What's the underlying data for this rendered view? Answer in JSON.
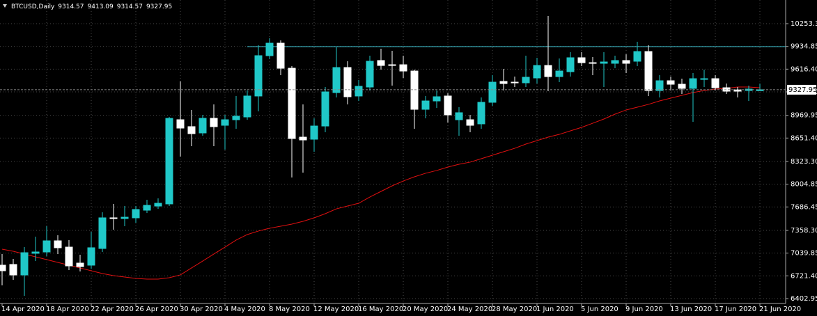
{
  "chart_data": {
    "type": "candlestick",
    "title": "BTCUSD,Daily",
    "categories": [
      "14 Apr 2020",
      null,
      null,
      null,
      "18 Apr 2020",
      null,
      null,
      null,
      "22 Apr 2020",
      null,
      null,
      null,
      "26 Apr 2020",
      null,
      null,
      null,
      "30 Apr 2020",
      null,
      null,
      null,
      "4 May 2020",
      null,
      null,
      null,
      "8 May 2020",
      null,
      null,
      null,
      "12 May 2020",
      null,
      null,
      null,
      "16 May 2020",
      null,
      null,
      null,
      "20 May 2020",
      null,
      null,
      null,
      "24 May 2020",
      null,
      null,
      null,
      "28 May 2020",
      null,
      null,
      null,
      "1 Jun 2020",
      null,
      null,
      null,
      "5 Jun 2020",
      null,
      null,
      null,
      "9 Jun 2020",
      null,
      null,
      null,
      "13 Jun 2020",
      null,
      null,
      null,
      "17 Jun 2020",
      null,
      null,
      null,
      "21 Jun 2020"
    ],
    "open": [
      6871,
      6881,
      6734,
      7037,
      7056,
      7212,
      7124,
      6900,
      6871,
      7105,
      7534,
      7524,
      7534,
      7641,
      7699,
      7729,
      8908,
      8811,
      8723,
      8928,
      8830,
      8908,
      8947,
      9240,
      9805,
      9980,
      9629,
      8664,
      8635,
      8820,
      9288,
      9639,
      9240,
      9366,
      9737,
      9678,
      9678,
      9590,
      9054,
      9171,
      9240,
      8908,
      8908,
      8850,
      9152,
      9444,
      9434,
      9425,
      9493,
      9668,
      9512,
      9581,
      9776,
      9707,
      9698,
      9698,
      9737,
      9727,
      9863,
      9317,
      9454,
      9405,
      9347,
      9473,
      9483,
      9356,
      9327,
      9317,
      9314.57
    ],
    "high": [
      7027,
      6959,
      7124,
      7270,
      7417,
      7290,
      7222,
      7017,
      7339,
      7612,
      7729,
      7699,
      7699,
      7787,
      7807,
      8947,
      9444,
      9044,
      8976,
      9123,
      8976,
      9240,
      9317,
      9951,
      10049,
      10019,
      9659,
      9123,
      8928,
      9366,
      9922,
      9727,
      9464,
      9805,
      9902,
      9873,
      9805,
      9610,
      9240,
      9317,
      9278,
      9084,
      8976,
      9220,
      9532,
      9620,
      9512,
      9805,
      9776,
      10361,
      9766,
      9854,
      9854,
      9785,
      9854,
      9805,
      9824,
      10000,
      9951,
      9532,
      9512,
      9483,
      9561,
      9610,
      9532,
      9415,
      9366,
      9386,
      9413.09
    ],
    "low": [
      6588,
      6666,
      6442,
      6929,
      6998,
      7027,
      6803,
      6783,
      6822,
      7056,
      7368,
      7417,
      7465,
      7602,
      7660,
      7699,
      8392,
      8538,
      8684,
      8538,
      8489,
      8781,
      8908,
      9025,
      9756,
      9532,
      8099,
      8167,
      8460,
      8733,
      9220,
      9123,
      9171,
      9317,
      9610,
      9386,
      9493,
      8781,
      8928,
      9074,
      8869,
      8684,
      8733,
      8781,
      9103,
      9317,
      9366,
      9366,
      9415,
      9308,
      9434,
      9512,
      9659,
      9532,
      9366,
      9629,
      9561,
      9659,
      9240,
      9220,
      9317,
      9269,
      8879,
      9366,
      9317,
      9269,
      9220,
      9171,
      9314.57
    ],
    "close": [
      6793,
      6734,
      7046,
      7056,
      7212,
      7115,
      6861,
      6851,
      7115,
      7534,
      7524,
      7543,
      7651,
      7709,
      7738,
      8927,
      8791,
      8713,
      8928,
      8811,
      8908,
      8957,
      9240,
      9805,
      9980,
      9629,
      8645,
      8625,
      8820,
      9298,
      9639,
      9230,
      9376,
      9727,
      9668,
      9673,
      9590,
      9054,
      9171,
      9230,
      8976,
      9006,
      8830,
      9152,
      9434,
      9415,
      9425,
      9503,
      9668,
      9512,
      9590,
      9776,
      9707,
      9698,
      9717,
      9737,
      9698,
      9863,
      9317,
      9454,
      9405,
      9347,
      9483,
      9483,
      9356,
      9308,
      9308,
      9337,
      9327.95
    ],
    "up_color": "#20c8c8",
    "down_color": "#ffffff",
    "ma": {
      "color": "#e01010",
      "values": [
        7095,
        7066,
        7027,
        6988,
        6949,
        6910,
        6871,
        6832,
        6793,
        6754,
        6725,
        6705,
        6686,
        6676,
        6676,
        6695,
        6735,
        6832,
        6929,
        7027,
        7124,
        7222,
        7300,
        7349,
        7388,
        7417,
        7446,
        7485,
        7534,
        7592,
        7660,
        7699,
        7738,
        7826,
        7904,
        7982,
        8050,
        8109,
        8158,
        8197,
        8245,
        8284,
        8314,
        8362,
        8411,
        8460,
        8508,
        8567,
        8616,
        8664,
        8703,
        8752,
        8801,
        8859,
        8918,
        8986,
        9045,
        9084,
        9123,
        9171,
        9210,
        9249,
        9288,
        9317,
        9337,
        9347,
        9366,
        9366,
        9356
      ]
    },
    "level": {
      "color": "#3fc8d8",
      "value": 9932
    },
    "ylim": [
      6334.7,
      10584.7
    ],
    "yticks": [
      {
        "value": 10253.3,
        "label": "10253.30"
      },
      {
        "value": 9934.85,
        "label": "9934.85"
      },
      {
        "value": 9616.4,
        "label": "9616.40"
      },
      {
        "value": 9297.95,
        "label": "9297.95"
      },
      {
        "value": 8969.95,
        "label": "8969.95"
      },
      {
        "value": 8651.4,
        "label": "8651.40"
      },
      {
        "value": 8323.3,
        "label": "8323.30"
      },
      {
        "value": 8004.85,
        "label": "8004.85"
      },
      {
        "value": 7686.45,
        "label": "7686.45"
      },
      {
        "value": 7358.3,
        "label": "7358.30"
      },
      {
        "value": 7039.85,
        "label": "7039.85"
      },
      {
        "value": 6721.4,
        "label": "6721.40"
      },
      {
        "value": 6402.95,
        "label": "6402.95"
      }
    ],
    "grid": true
  }
}
